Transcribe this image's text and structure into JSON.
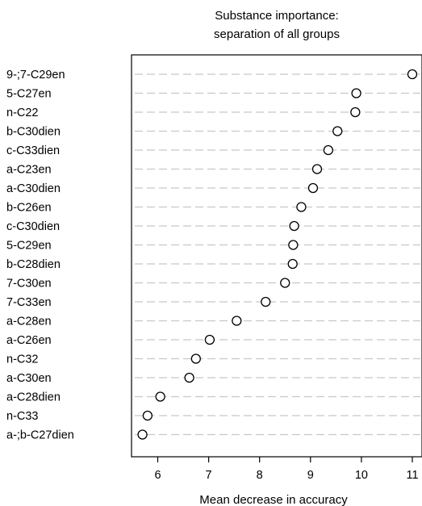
{
  "chart_data": {
    "type": "scatter",
    "title": [
      "Substance importance:",
      "separation of all groups"
    ],
    "xlabel": "Mean decrease in accuracy",
    "ylabel": "",
    "xlim": [
      5.45,
      11.2
    ],
    "xticks": [
      6,
      7,
      8,
      9,
      10,
      11
    ],
    "grid": "horizontal dashed guide lines",
    "categories": [
      "9-;7-C29en",
      "5-C27en",
      "n-C22",
      "b-C30dien",
      "c-C33dien",
      "a-C23en",
      "a-C30dien",
      "b-C26en",
      "c-C30dien",
      "5-C29en",
      "b-C28dien",
      "7-C30en",
      "7-C33en",
      "a-C28en",
      "a-C26en",
      "n-C32",
      "a-C30en",
      "a-C28dien",
      "n-C33",
      "a-;b-C27dien"
    ],
    "values": [
      11.0,
      9.9,
      9.88,
      9.53,
      9.35,
      9.13,
      9.05,
      8.82,
      8.68,
      8.66,
      8.65,
      8.5,
      8.12,
      7.55,
      7.02,
      6.75,
      6.62,
      6.05,
      5.8,
      5.7
    ]
  }
}
